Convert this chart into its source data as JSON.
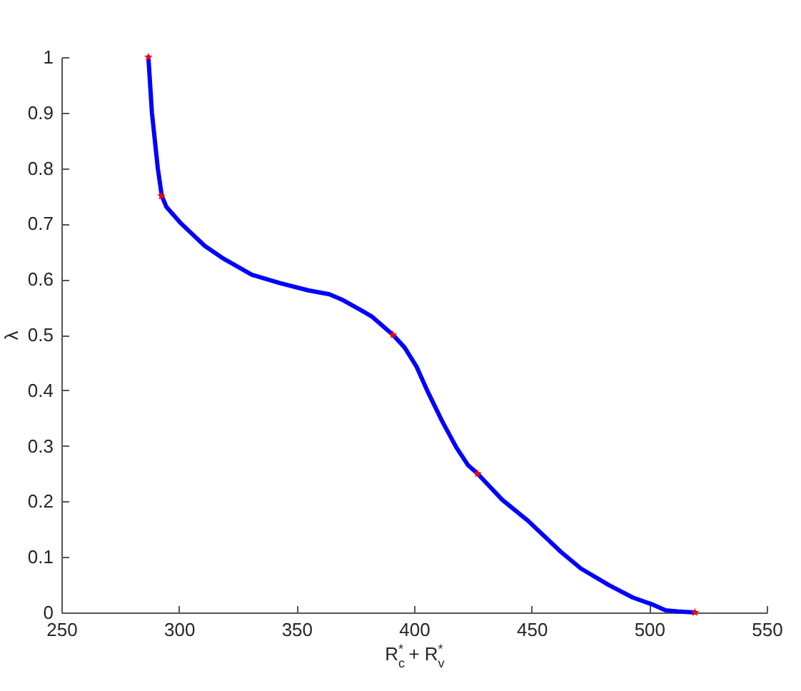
{
  "chart_data": {
    "type": "line",
    "xlabel": "R$_{c}$$^{*}$ + R$_{v}$$^{*}$",
    "ylabel": "λ",
    "xlim": [
      250,
      550
    ],
    "xticks": [
      250,
      300,
      350,
      400,
      450,
      500,
      550
    ],
    "ylim": [
      0,
      1
    ],
    "yticks": [
      0,
      0.1,
      0.2,
      0.3,
      0.4,
      0.5,
      0.6,
      0.7,
      0.8,
      0.9,
      1
    ],
    "series": [
      {
        "type": "line",
        "color": "#0000ff",
        "x": [
          287,
          288.5,
          291,
          292.7,
          294.7,
          301,
          311,
          319,
          331,
          343,
          355,
          364,
          370,
          378,
          382,
          391,
          396,
          401,
          406,
          412,
          418,
          423,
          427,
          437.5,
          448.5,
          462.5,
          471,
          483,
          493,
          501,
          507,
          512,
          519.5
        ],
        "values": [
          1,
          0.9,
          0.8,
          0.75,
          0.73,
          0.7,
          0.66,
          0.637,
          0.608,
          0.593,
          0.58,
          0.573,
          0.562,
          0.543,
          0.533,
          0.5,
          0.477,
          0.443,
          0.396,
          0.344,
          0.297,
          0.265,
          0.25,
          0.203,
          0.165,
          0.109,
          0.079,
          0.049,
          0.027,
          0.015,
          0.004,
          0.002,
          0
        ]
      },
      {
        "type": "scatter",
        "color": "#ff0000",
        "marker": "star",
        "x": [
          287,
          292.5,
          391,
          427,
          519.5
        ],
        "values": [
          1,
          0.75,
          0.5,
          0.25,
          0
        ]
      }
    ]
  }
}
